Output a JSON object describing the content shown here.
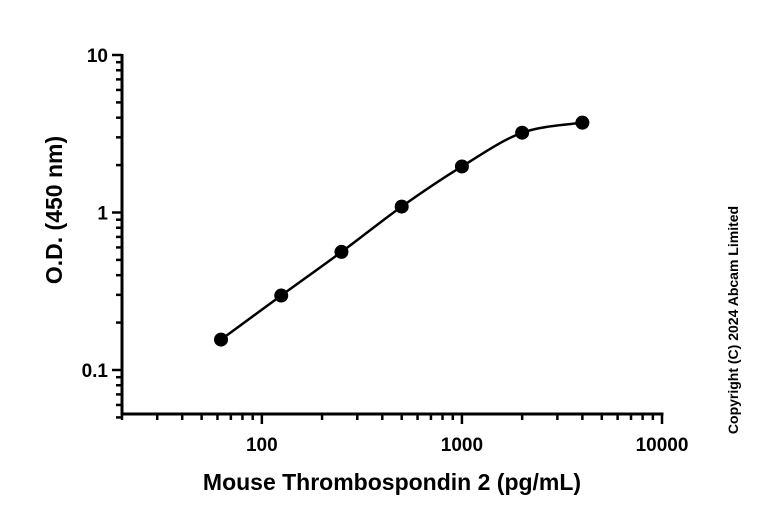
{
  "chart_data": {
    "type": "scatter",
    "xlabel": "Mouse Thrombospondin 2 (pg/mL)",
    "ylabel": "O.D. (450 nm)",
    "xscale": "log",
    "yscale": "log",
    "xlim": [
      20,
      10000
    ],
    "ylim": [
      0.05,
      10
    ],
    "xticks": [
      {
        "value": 100,
        "label": "100"
      },
      {
        "value": 1000,
        "label": "1000"
      },
      {
        "value": 10000,
        "label": "10000"
      }
    ],
    "yticks": [
      {
        "value": 0.1,
        "label": "0.1"
      },
      {
        "value": 1,
        "label": "1"
      },
      {
        "value": 10,
        "label": "10"
      }
    ],
    "grid": false,
    "fit_curve": "smooth curve through points",
    "marker_color": "#000000",
    "series": [
      {
        "x": [
          62.5,
          125,
          250,
          500,
          1000,
          2000,
          4000
        ],
        "y": [
          0.156,
          0.297,
          0.562,
          1.09,
          1.96,
          3.21,
          3.72
        ]
      }
    ],
    "annotation": "Copyright (C) 2024 Abcam Limited"
  }
}
